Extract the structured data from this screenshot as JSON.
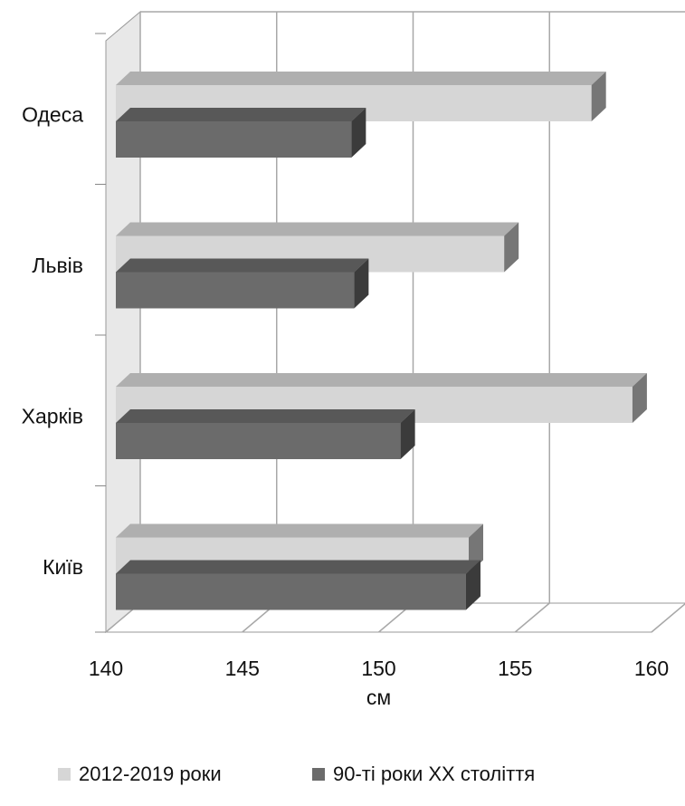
{
  "chart_data": {
    "type": "bar",
    "orientation": "horizontal",
    "style": "3d",
    "categories": [
      "Одеса",
      "Львів",
      "Харків",
      "Київ"
    ],
    "series": [
      {
        "name": "2012-2019 роки",
        "color": "#d6d6d6",
        "values": [
          157.8,
          154.6,
          159.3,
          153.3
        ]
      },
      {
        "name": "90-ті роки XX століття",
        "color": "#6b6b6b",
        "values": [
          149.0,
          149.1,
          150.8,
          153.2
        ]
      }
    ],
    "xlim": [
      140,
      160
    ],
    "x_ticks": [
      "140",
      "145",
      "150",
      "155",
      "160"
    ],
    "xlabel": "см",
    "ylabel": "",
    "grid": true,
    "legend_position": "bottom"
  }
}
